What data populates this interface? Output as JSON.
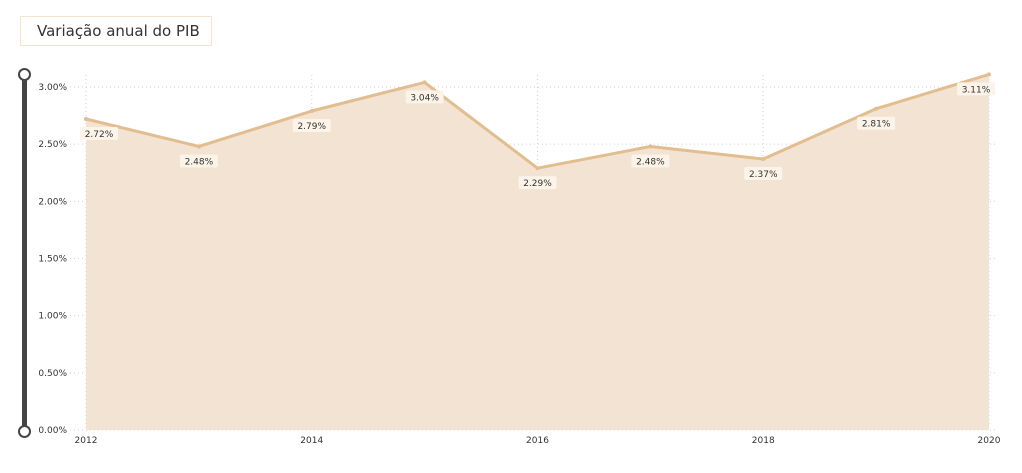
{
  "title": "Variação anual do PIB",
  "colors": {
    "line": "#e2bd8f",
    "area": "#f3e3d3",
    "grid": "#cfcfcf",
    "label_bg": "#fcf3e9"
  },
  "chart_data": {
    "type": "area",
    "title": "Variação anual do PIB",
    "x": [
      2012,
      2013,
      2014,
      2015,
      2016,
      2017,
      2018,
      2019,
      2020
    ],
    "values": [
      2.72,
      2.48,
      2.79,
      3.04,
      2.29,
      2.48,
      2.37,
      2.81,
      3.11
    ],
    "data_labels": [
      "2.72%",
      "2.48%",
      "2.79%",
      "3.04%",
      "2.29%",
      "2.48%",
      "2.37%",
      "2.81%",
      "3.11%"
    ],
    "x_ticks": [
      2012,
      2014,
      2016,
      2018,
      2020
    ],
    "x_tick_labels": [
      "2012",
      "2014",
      "2016",
      "2018",
      "2020"
    ],
    "y_ticks": [
      0,
      0.5,
      1.0,
      1.5,
      2.0,
      2.5,
      3.0
    ],
    "y_tick_labels": [
      "0.00%",
      "0.50%",
      "1.00%",
      "1.50%",
      "2.00%",
      "2.50%",
      "3.00%"
    ],
    "xlim": [
      2012,
      2020
    ],
    "ylim": [
      0,
      3.15
    ],
    "grid": true,
    "legend": "none"
  }
}
